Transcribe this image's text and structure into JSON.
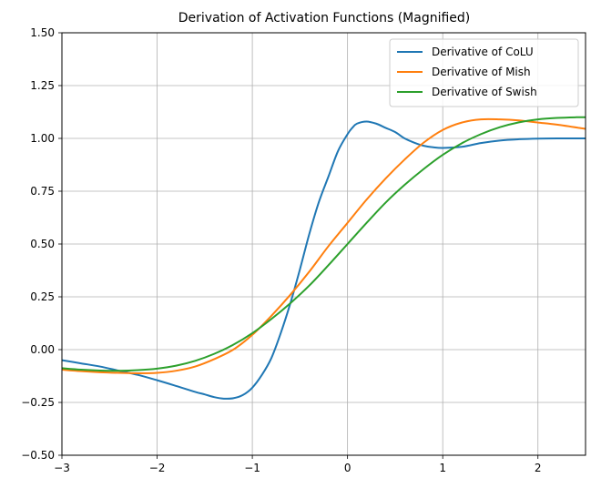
{
  "chart_data": {
    "type": "line",
    "title": "Derivation of Activation Functions (Magnified)",
    "xlabel": "",
    "ylabel": "",
    "xlim": [
      -3,
      2.5
    ],
    "ylim": [
      -0.5,
      1.5
    ],
    "grid": true,
    "legend_position": "top-right",
    "xticks": [
      -3,
      -2,
      -1,
      0,
      1,
      2
    ],
    "xtick_labels": [
      "−3",
      "−2",
      "−1",
      "0",
      "1",
      "2"
    ],
    "yticks": [
      -0.5,
      -0.25,
      0,
      0.25,
      0.5,
      0.75,
      1.0,
      1.25,
      1.5
    ],
    "ytick_labels": [
      "−0.50",
      "−0.25",
      "0.00",
      "0.25",
      "0.50",
      "0.75",
      "1.00",
      "1.25",
      "1.50"
    ],
    "series": [
      {
        "name": "Derivative of CoLU",
        "color": "#1f77b4",
        "x": [
          -3,
          -2.8,
          -2.6,
          -2.4,
          -2.2,
          -2.0,
          -1.8,
          -1.6,
          -1.5,
          -1.4,
          -1.3,
          -1.2,
          -1.1,
          -1.0,
          -0.9,
          -0.8,
          -0.7,
          -0.6,
          -0.5,
          -0.4,
          -0.3,
          -0.2,
          -0.1,
          0.0,
          0.05,
          0.1,
          0.2,
          0.3,
          0.4,
          0.5,
          0.6,
          0.7,
          0.8,
          0.9,
          1.0,
          1.2,
          1.4,
          1.6,
          1.8,
          2.0,
          2.2,
          2.5
        ],
        "y": [
          -0.05,
          -0.065,
          -0.08,
          -0.1,
          -0.12,
          -0.145,
          -0.172,
          -0.2,
          -0.212,
          -0.225,
          -0.232,
          -0.23,
          -0.215,
          -0.18,
          -0.12,
          -0.04,
          0.08,
          0.22,
          0.38,
          0.55,
          0.7,
          0.82,
          0.94,
          1.02,
          1.05,
          1.07,
          1.08,
          1.07,
          1.05,
          1.03,
          1.0,
          0.98,
          0.965,
          0.958,
          0.955,
          0.96,
          0.978,
          0.99,
          0.996,
          0.999,
          1.0,
          1.0
        ]
      },
      {
        "name": "Derivative of Mish",
        "color": "#ff7f0e",
        "x": [
          -3,
          -2.8,
          -2.6,
          -2.4,
          -2.2,
          -2.0,
          -1.8,
          -1.6,
          -1.4,
          -1.2,
          -1.0,
          -0.8,
          -0.6,
          -0.4,
          -0.2,
          0.0,
          0.2,
          0.4,
          0.6,
          0.8,
          1.0,
          1.2,
          1.4,
          1.6,
          1.8,
          2.0,
          2.2,
          2.5
        ],
        "y": [
          -0.095,
          -0.102,
          -0.107,
          -0.11,
          -0.112,
          -0.11,
          -0.1,
          -0.08,
          -0.045,
          0.0,
          0.07,
          0.16,
          0.26,
          0.37,
          0.49,
          0.6,
          0.71,
          0.81,
          0.9,
          0.98,
          1.04,
          1.075,
          1.09,
          1.09,
          1.085,
          1.075,
          1.065,
          1.045
        ]
      },
      {
        "name": "Derivative of Swish",
        "color": "#2ca02c",
        "x": [
          -3,
          -2.8,
          -2.6,
          -2.4,
          -2.2,
          -2.0,
          -1.8,
          -1.6,
          -1.4,
          -1.2,
          -1.0,
          -0.8,
          -0.6,
          -0.4,
          -0.2,
          0.0,
          0.2,
          0.4,
          0.6,
          0.8,
          1.0,
          1.2,
          1.4,
          1.6,
          1.8,
          2.0,
          2.2,
          2.4,
          2.5
        ],
        "y": [
          -0.088,
          -0.095,
          -0.099,
          -0.1,
          -0.097,
          -0.09,
          -0.076,
          -0.053,
          -0.02,
          0.023,
          0.078,
          0.145,
          0.22,
          0.304,
          0.4,
          0.5,
          0.6,
          0.696,
          0.78,
          0.855,
          0.922,
          0.977,
          1.02,
          1.053,
          1.076,
          1.09,
          1.097,
          1.1,
          1.1
        ]
      }
    ]
  }
}
